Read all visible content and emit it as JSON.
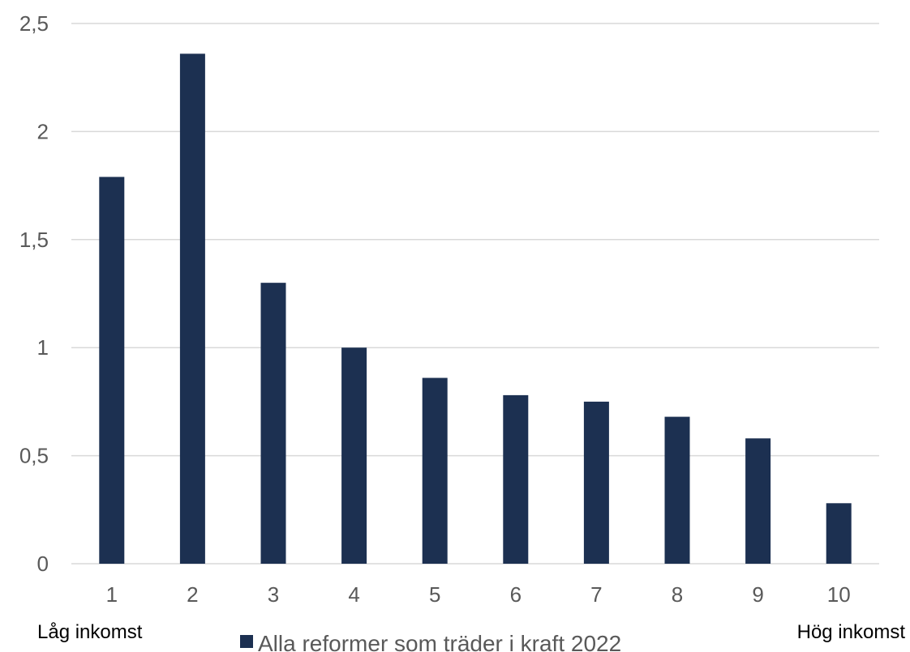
{
  "chart_data": {
    "type": "bar",
    "categories": [
      "1",
      "2",
      "3",
      "4",
      "5",
      "6",
      "7",
      "8",
      "9",
      "10"
    ],
    "series": [
      {
        "name": "Alla reformer som träder i kraft 2022",
        "values": [
          1.79,
          2.36,
          1.3,
          1.0,
          0.86,
          0.78,
          0.75,
          0.68,
          0.58,
          0.28
        ]
      }
    ],
    "yticks": [
      "0",
      "0,5",
      "1",
      "1,5",
      "2",
      "2,5"
    ],
    "ylim": [
      0,
      2.5
    ],
    "grid": true,
    "legend_position": "bottom",
    "colors": {
      "bar": "#1c3051",
      "grid": "#d9d9d9",
      "tick_text": "#595959"
    },
    "annotations": {
      "left": "Låg inkomst",
      "right": "Hög inkomst"
    }
  }
}
